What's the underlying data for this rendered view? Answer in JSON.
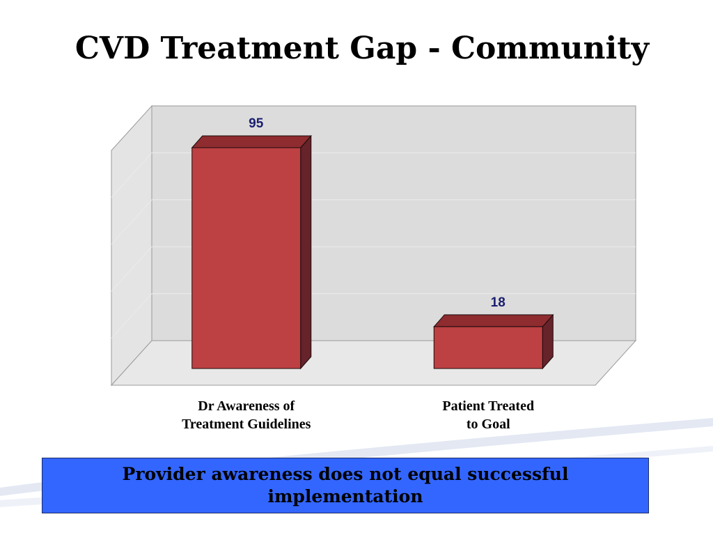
{
  "slide": {
    "title": "CVD Treatment Gap - Community",
    "callout": "Provider awareness does not equal successful implementation"
  },
  "chart_data": {
    "type": "bar",
    "categories": [
      "Dr Awareness of\nTreatment Guidelines",
      "Patient Treated\nto Goal"
    ],
    "values": [
      95,
      18
    ],
    "ylim": [
      0,
      100
    ],
    "grid": true,
    "three_d": true,
    "colors": {
      "bar_front": "#bd4043",
      "bar_top": "#8e2c30",
      "bar_side": "#66232a",
      "value_label": "#1a1f6e",
      "plot_wall": "#dcdcdc"
    }
  }
}
